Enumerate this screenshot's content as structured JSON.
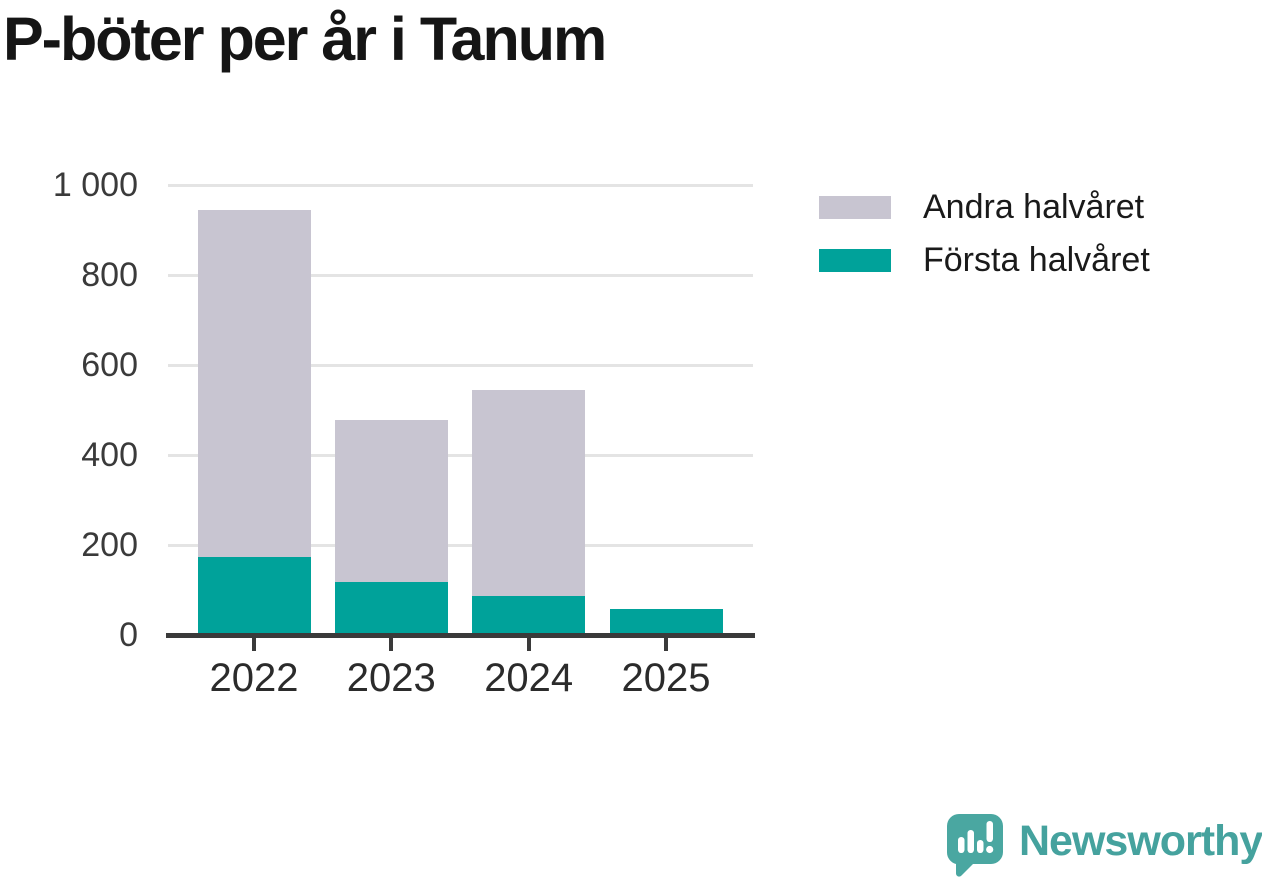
{
  "title": "P-böter per år i Tanum",
  "chart_data": {
    "type": "bar",
    "stacked": true,
    "title": "P-böter per år i Tanum",
    "categories": [
      "2022",
      "2023",
      "2024",
      "2025"
    ],
    "series": [
      {
        "name": "Första halvåret",
        "color": "#00a29a",
        "values": [
          173,
          118,
          87,
          57
        ]
      },
      {
        "name": "Andra halvåret",
        "color": "#c8c5d1",
        "values": [
          772,
          359,
          457,
          0
        ]
      }
    ],
    "totals": [
      945,
      477,
      544,
      57
    ],
    "xlabel": "",
    "ylabel": "",
    "ylim": [
      0,
      1000
    ],
    "ytick_labels": [
      "1 000",
      "800",
      "600",
      "400",
      "200",
      "0"
    ],
    "ytick_values": [
      1000,
      800,
      600,
      400,
      200,
      0
    ],
    "grid": true,
    "legend_position": "top-right",
    "legend_order": [
      "Andra halvåret",
      "Första halvåret"
    ]
  },
  "legend": {
    "items": [
      {
        "label": "Andra halvåret",
        "color": "#c8c5d1"
      },
      {
        "label": "Första halvåret",
        "color": "#00a29a"
      }
    ]
  },
  "branding": {
    "wordmark": "Newsworthy",
    "logo_icon": "newsworthy-speech-bubble-chart-icon",
    "wordmark_color": "#45a29e",
    "logo_color": "#4aa7a1"
  }
}
